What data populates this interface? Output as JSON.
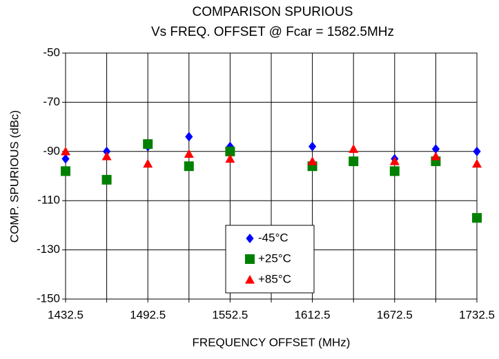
{
  "chart_data": {
    "type": "scatter",
    "title": "COMPARISON SPURIOUS",
    "subtitle": "Vs FREQ. OFFSET @ Fcar = 1582.5MHz",
    "x_label": "FREQUENCY OFFSET (MHz)",
    "y_label": "COMP. SPURIOUS (dBc)",
    "x": [
      1432.5,
      1462.5,
      1492.5,
      1522.5,
      1552.5,
      1582.5,
      1612.5,
      1642.5,
      1672.5,
      1702.5,
      1732.5
    ],
    "series": [
      {
        "name": "-45°C",
        "color": "#0000ff",
        "marker": "diamond",
        "values": [
          -93,
          -90,
          -88,
          -84,
          -88,
          null,
          -88,
          null,
          -93,
          -89,
          -90
        ]
      },
      {
        "name": "+25°C",
        "color": "#008000",
        "marker": "square",
        "values": [
          -98,
          -101.5,
          -87,
          -96,
          -90,
          null,
          -96,
          -94,
          -98,
          -94,
          -117
        ]
      },
      {
        "name": "+85°C",
        "color": "#ff0000",
        "marker": "triangle",
        "values": [
          -90,
          -92,
          -95,
          -91,
          -93,
          null,
          -94,
          -89,
          -94,
          -92,
          -95
        ]
      }
    ],
    "xlim": [
      1432.5,
      1732.5
    ],
    "xticks": [
      1432.5,
      1492.5,
      1552.5,
      1612.5,
      1672.5,
      1732.5
    ],
    "x_minor_grid": [
      1462.5,
      1522.5,
      1582.5,
      1642.5,
      1702.5
    ],
    "ylim": [
      -150,
      -50
    ],
    "yticks": [
      -150,
      -130,
      -110,
      -90,
      -70,
      -50
    ],
    "grid": true
  }
}
